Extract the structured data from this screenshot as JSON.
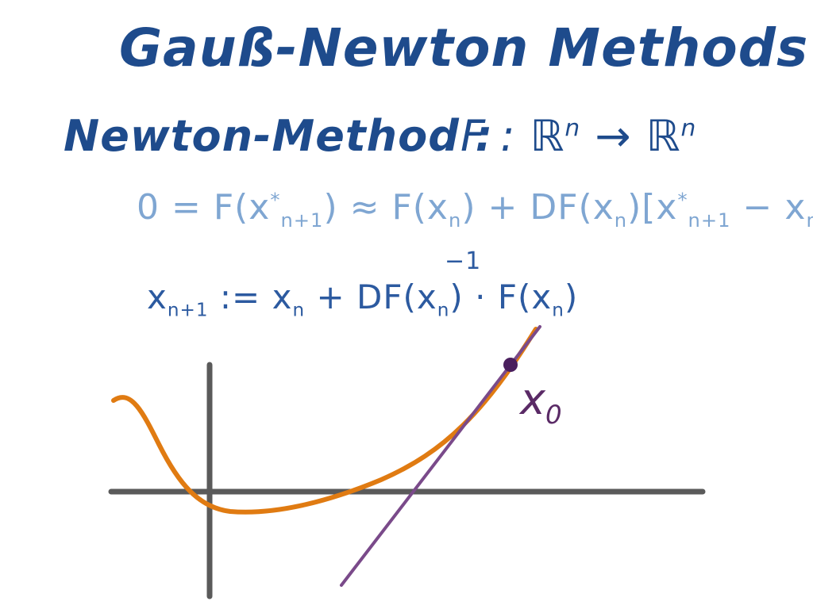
{
  "title": "Gauß-Newton Methods",
  "newton_label": "Newton-Method :",
  "mapping": {
    "prefix": "F : ℝ",
    "sup1": "n",
    "arrow": " → ℝ",
    "sup2": "n"
  },
  "linearization": {
    "lhs": "0 = F(x",
    "star1": "*",
    "sub1": "n+1",
    "mid": ") ≈ F(x",
    "sub2": "n",
    "mid2": ") + DF(x",
    "sub3": "n",
    "bracket": ")[x",
    "star2": "*",
    "sub4": "n+1",
    "minus": " − x",
    "sub5": "n",
    "end": "]"
  },
  "update_rule": {
    "x": "x",
    "sub1": "n+1",
    "assign": " := x",
    "sub2": "n",
    "plus": " + DF(x",
    "sub3": "n",
    "dot": ") · F(x",
    "sub4": "n",
    "end": ")"
  },
  "exponent": "−1",
  "x0_label": {
    "x": "x",
    "sub": "0"
  },
  "colors": {
    "ink_dark": "#1e4b8c",
    "ink_light": "#7fa6d2",
    "curve": "#e07b12",
    "tangent": "#7a4a8a",
    "point": "#4a1f5e",
    "axes": "#5a5a5a"
  }
}
